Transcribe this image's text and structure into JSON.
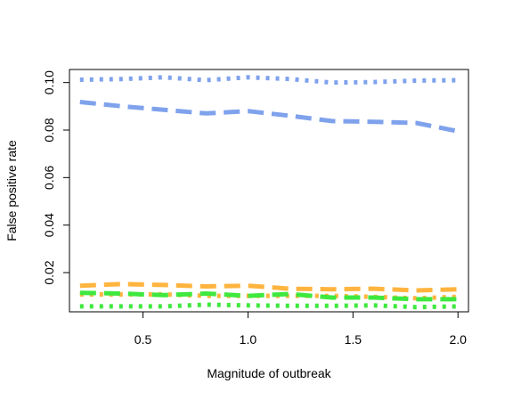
{
  "chart_data": {
    "type": "line",
    "title": "",
    "xlabel": "Magnitude of outbreak",
    "ylabel": "False positive rate",
    "xlim": [
      0.15,
      2.05
    ],
    "ylim": [
      0.0035,
      0.1055
    ],
    "xticks": [
      0.5,
      1.0,
      1.5,
      2.0
    ],
    "xtick_labels": [
      "0.5",
      "1.0",
      "1.5",
      "2.0"
    ],
    "yticks": [
      0.02,
      0.04,
      0.06,
      0.08,
      0.1
    ],
    "ytick_labels": [
      "0.02",
      "0.04",
      "0.06",
      "0.08",
      "0.10"
    ],
    "grid": false,
    "legend": "none",
    "x": [
      0.2,
      0.4,
      0.6,
      0.8,
      1.0,
      1.2,
      1.4,
      1.6,
      1.8,
      2.0
    ],
    "series": [
      {
        "color": "#7fa2ec",
        "style": "dotted",
        "values": [
          0.1012,
          0.1015,
          0.1022,
          0.101,
          0.1022,
          0.1015,
          0.1,
          0.1002,
          0.1008,
          0.101
        ]
      },
      {
        "color": "#7fa2ec",
        "style": "dashed",
        "values": [
          0.0918,
          0.09,
          0.0885,
          0.087,
          0.088,
          0.086,
          0.0838,
          0.0835,
          0.083,
          0.0795
        ]
      },
      {
        "color": "#ffb43e",
        "style": "dashed",
        "values": [
          0.0145,
          0.0152,
          0.0148,
          0.0142,
          0.0145,
          0.0132,
          0.013,
          0.0132,
          0.0125,
          0.013
        ]
      },
      {
        "color": "#ffb43e",
        "style": "dotted",
        "values": [
          0.0108,
          0.0108,
          0.0108,
          0.0102,
          0.0102,
          0.0102,
          0.0102,
          0.0098,
          0.0092,
          0.0098
        ]
      },
      {
        "color": "#3ee83e",
        "style": "dashed",
        "values": [
          0.0115,
          0.0112,
          0.0105,
          0.0112,
          0.0102,
          0.011,
          0.0095,
          0.0095,
          0.0088,
          0.0088
        ]
      },
      {
        "color": "#3ee83e",
        "style": "dotted",
        "values": [
          0.0058,
          0.0058,
          0.0058,
          0.0065,
          0.0062,
          0.006,
          0.006,
          0.0062,
          0.0055,
          0.0058
        ]
      }
    ]
  }
}
